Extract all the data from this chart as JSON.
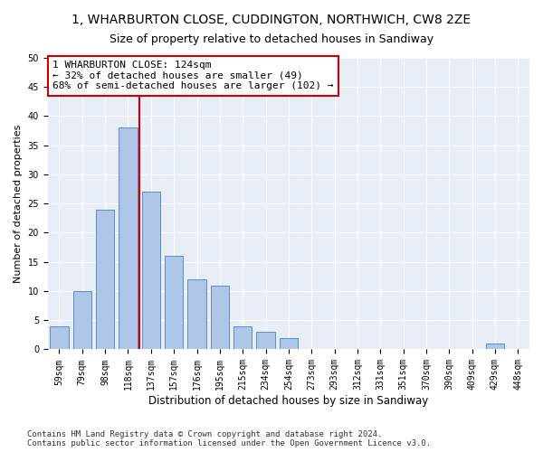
{
  "title": "1, WHARBURTON CLOSE, CUDDINGTON, NORTHWICH, CW8 2ZE",
  "subtitle": "Size of property relative to detached houses in Sandiway",
  "xlabel": "Distribution of detached houses by size in Sandiway",
  "ylabel": "Number of detached properties",
  "bar_color": "#aec6e8",
  "bar_edge_color": "#5a8fc2",
  "categories": [
    "59sqm",
    "79sqm",
    "98sqm",
    "118sqm",
    "137sqm",
    "157sqm",
    "176sqm",
    "195sqm",
    "215sqm",
    "234sqm",
    "254sqm",
    "273sqm",
    "293sqm",
    "312sqm",
    "331sqm",
    "351sqm",
    "370sqm",
    "390sqm",
    "409sqm",
    "429sqm",
    "448sqm"
  ],
  "values": [
    4,
    10,
    24,
    38,
    27,
    16,
    12,
    11,
    4,
    3,
    2,
    0,
    0,
    0,
    0,
    0,
    0,
    0,
    0,
    1,
    0
  ],
  "vline_x": 3.5,
  "vline_color": "#cc0000",
  "annotation_text": "1 WHARBURTON CLOSE: 124sqm\n← 32% of detached houses are smaller (49)\n68% of semi-detached houses are larger (102) →",
  "annotation_box_color": "#ffffff",
  "annotation_box_edge": "#cc0000",
  "ylim": [
    0,
    50
  ],
  "yticks": [
    0,
    5,
    10,
    15,
    20,
    25,
    30,
    35,
    40,
    45,
    50
  ],
  "background_color": "#e8eef8",
  "grid_color": "#ffffff",
  "footer_text": "Contains HM Land Registry data © Crown copyright and database right 2024.\nContains public sector information licensed under the Open Government Licence v3.0.",
  "title_fontsize": 10,
  "subtitle_fontsize": 9,
  "xlabel_fontsize": 8.5,
  "ylabel_fontsize": 8,
  "tick_fontsize": 7,
  "annotation_fontsize": 8,
  "footer_fontsize": 6.5
}
